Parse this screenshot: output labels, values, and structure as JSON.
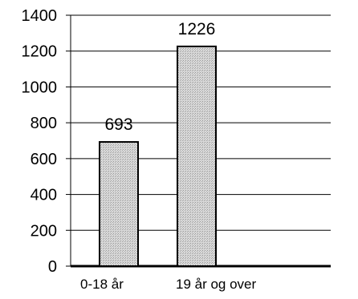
{
  "chart_data": {
    "type": "bar",
    "categories": [
      "0-18 år",
      "19 år og over"
    ],
    "values": [
      693,
      1226
    ],
    "data_labels": [
      "693",
      "1226"
    ],
    "y_ticks": [
      "0",
      "200",
      "400",
      "600",
      "800",
      "1000",
      "1200",
      "1400"
    ],
    "ylim": [
      0,
      1400
    ],
    "grid": true,
    "legend": "none",
    "colors": {
      "bar_fill": "#c8c8c8",
      "bar_stroke": "#000000",
      "grid": "#000000",
      "axis": "#000000",
      "text": "#000000"
    }
  }
}
